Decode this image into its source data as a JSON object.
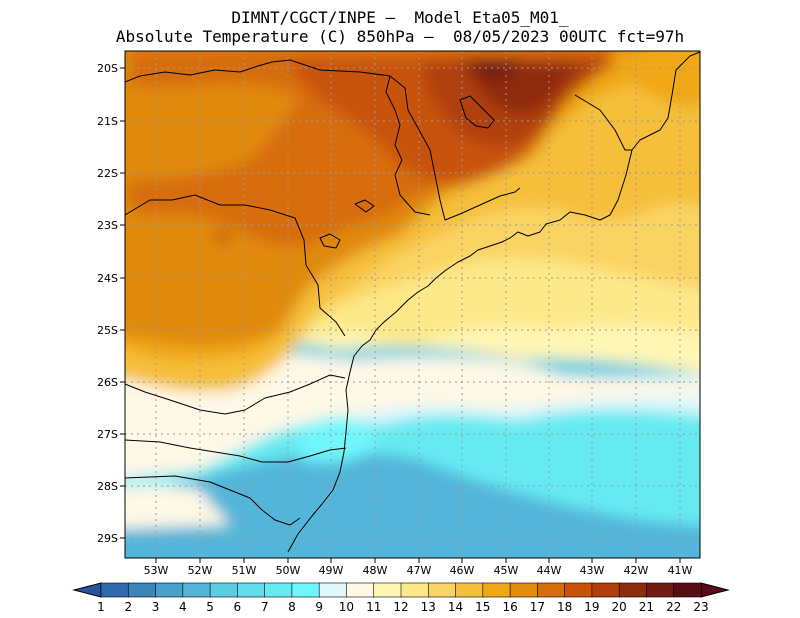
{
  "header": {
    "line1": "DIMNT/CGCT/INPE –  Model Eta05_M01_",
    "line2": "Absolute Temperature (C) 850hPa –  08/05/2023 00UTC fct=97h"
  },
  "map_data": {
    "lat_labels": [
      "20S",
      "21S",
      "22S",
      "23S",
      "24S",
      "25S",
      "26S",
      "27S",
      "28S",
      "29S"
    ],
    "lon_labels": [
      "53W",
      "52W",
      "51W",
      "50W",
      "49W",
      "48W",
      "47W",
      "46W",
      "45W",
      "44W",
      "43W",
      "42W",
      "41W"
    ]
  },
  "colorbar": {
    "labels": [
      "1",
      "2",
      "3",
      "4",
      "5",
      "6",
      "7",
      "8",
      "9",
      "10",
      "11",
      "12",
      "13",
      "14",
      "15",
      "16",
      "17",
      "18",
      "19",
      "20",
      "21",
      "22",
      "23"
    ],
    "colors": [
      "#25549c",
      "#2e6aad",
      "#3a85ba",
      "#4aa0cc",
      "#53b5d9",
      "#5ccbe4",
      "#63dded",
      "#66eaf2",
      "#6ff6fb",
      "#dff6fb",
      "#fef8e6",
      "#fff6b4",
      "#fde98a",
      "#fad464",
      "#f5bf3b",
      "#f0a817",
      "#e08a0e",
      "#d76d0c",
      "#c85308",
      "#b03f08",
      "#8e2a0d",
      "#701a13",
      "#5a0c16"
    ],
    "end_left_color": "#25549c",
    "end_right_color": "#5a0c16"
  }
}
